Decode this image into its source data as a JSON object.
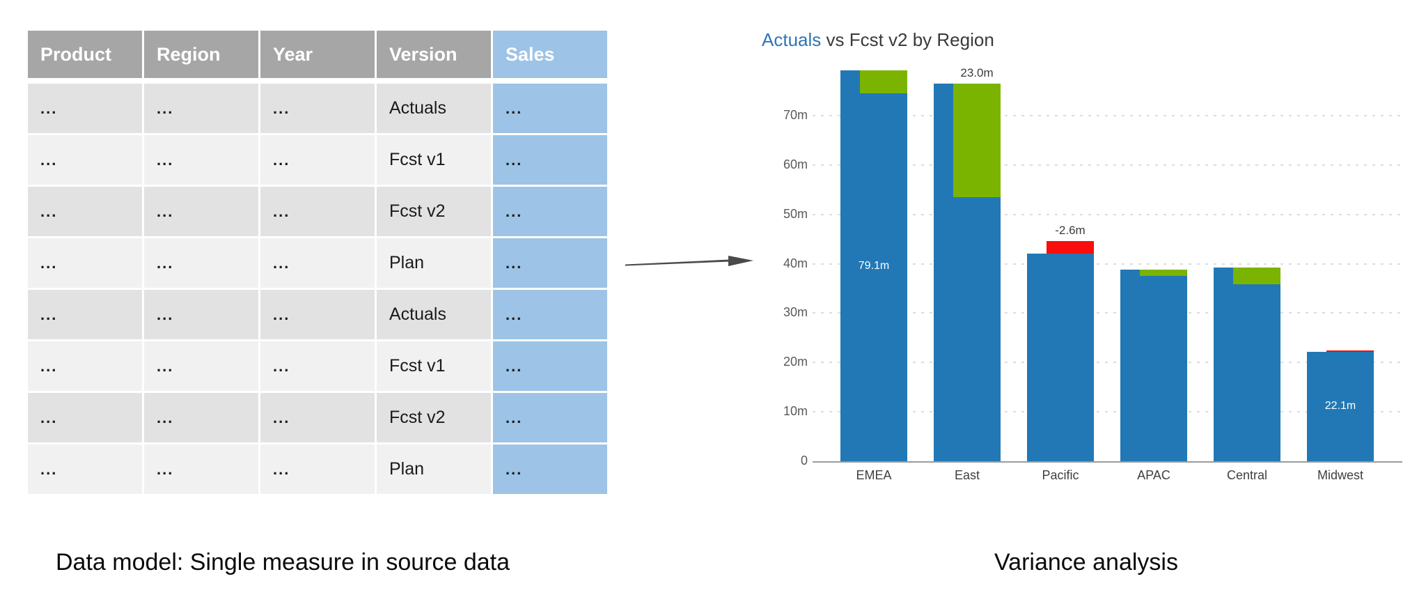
{
  "left_panel": {
    "caption": "Data model: Single measure in source data",
    "table": {
      "columns": [
        "Product",
        "Region",
        "Year",
        "Version",
        "Sales"
      ],
      "highlight_column": "Sales",
      "placeholder": "...",
      "rows": [
        [
          "...",
          "...",
          "...",
          "Actuals",
          "..."
        ],
        [
          "...",
          "...",
          "...",
          "Fcst v1",
          "..."
        ],
        [
          "...",
          "...",
          "...",
          "Fcst v2",
          "..."
        ],
        [
          "...",
          "...",
          "...",
          "Plan",
          "..."
        ],
        [
          "...",
          "...",
          "...",
          "Actuals",
          "..."
        ],
        [
          "...",
          "...",
          "...",
          "Fcst v1",
          "..."
        ],
        [
          "...",
          "...",
          "...",
          "Fcst v2",
          "..."
        ],
        [
          "...",
          "...",
          "...",
          "Plan",
          "..."
        ]
      ]
    }
  },
  "right_panel": {
    "caption": "Variance analysis"
  },
  "chart_data": {
    "type": "bar",
    "subtype": "variance-overlay",
    "title": {
      "highlight": "Actuals",
      "rest": " vs Fcst v2 by Region"
    },
    "categories": [
      "EMEA",
      "East",
      "Pacific",
      "APAC",
      "Central",
      "Midwest"
    ],
    "series": [
      {
        "name": "Actuals",
        "values": [
          79.1,
          76.5,
          42.0,
          38.8,
          39.2,
          22.1
        ]
      },
      {
        "name": "Fcst v2",
        "values": [
          74.5,
          53.5,
          44.6,
          37.5,
          35.9,
          22.4
        ]
      }
    ],
    "variances": [
      4.6,
      23.0,
      -2.6,
      1.3,
      3.3,
      -0.3
    ],
    "data_labels": {
      "inside_bar": [
        {
          "category": "EMEA",
          "text": "79.1m",
          "at_value": 39.5
        },
        {
          "category": "Midwest",
          "text": "22.1m",
          "at_value": 11.2
        }
      ],
      "above_bar": [
        {
          "category": "East",
          "text": "23.0m"
        },
        {
          "category": "Pacific",
          "text": "-2.6m"
        }
      ]
    },
    "y_axis": {
      "tick_values": [
        0,
        10,
        20,
        30,
        40,
        50,
        60,
        70
      ],
      "tick_labels": [
        "0",
        "10m",
        "20m",
        "30m",
        "40m",
        "50m",
        "60m",
        "70m"
      ],
      "max": 80,
      "gridlines": "dotted"
    },
    "legend": "none"
  },
  "colors": {
    "table_header_bg": "#a6a6a6",
    "table_header_text": "#ffffff",
    "sales_bg": "#9dc3e6",
    "row_odd": "#e2e2e2",
    "row_even": "#f1f1f1",
    "bar_blue": "#2278b5",
    "variance_positive": "#7ab400",
    "variance_negative": "#f90d0d",
    "title_highlight": "#2e75b6",
    "arrow": "#4a4a4a"
  }
}
